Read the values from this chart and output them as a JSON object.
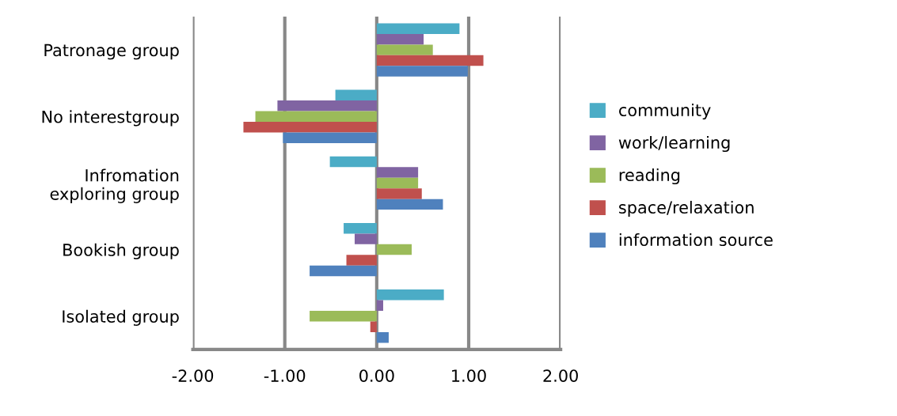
{
  "chart_data": {
    "type": "bar",
    "orientation": "horizontal",
    "categories": [
      "Patronage group",
      "No interestgroup",
      "Infromation\nexploring group",
      "Bookish group",
      "Isolated group"
    ],
    "series": [
      {
        "name": "community",
        "color": "#4bacc6",
        "values": [
          0.9,
          -0.45,
          -0.51,
          -0.36,
          0.73
        ]
      },
      {
        "name": "work/learning",
        "color": "#8064a2",
        "values": [
          0.51,
          -1.08,
          0.45,
          -0.24,
          0.07
        ]
      },
      {
        "name": "reading",
        "color": "#9bbb59",
        "values": [
          0.61,
          -1.32,
          0.45,
          0.38,
          -0.73
        ]
      },
      {
        "name": "space/relaxation",
        "color": "#c0504d",
        "values": [
          1.16,
          -1.45,
          0.49,
          -0.33,
          -0.07
        ]
      },
      {
        "name": "information source",
        "color": "#4f81bd",
        "values": [
          0.99,
          -1.02,
          0.72,
          -0.73,
          0.13
        ]
      }
    ],
    "xlim": [
      -2,
      2
    ],
    "xticks": [
      {
        "value": -2,
        "label": "-2.00"
      },
      {
        "value": -1,
        "label": "-1.00"
      },
      {
        "value": 0,
        "label": "0.00"
      },
      {
        "value": 1,
        "label": "1.00"
      },
      {
        "value": 2,
        "label": "2.00"
      }
    ],
    "grid": "x",
    "legend": "right"
  }
}
